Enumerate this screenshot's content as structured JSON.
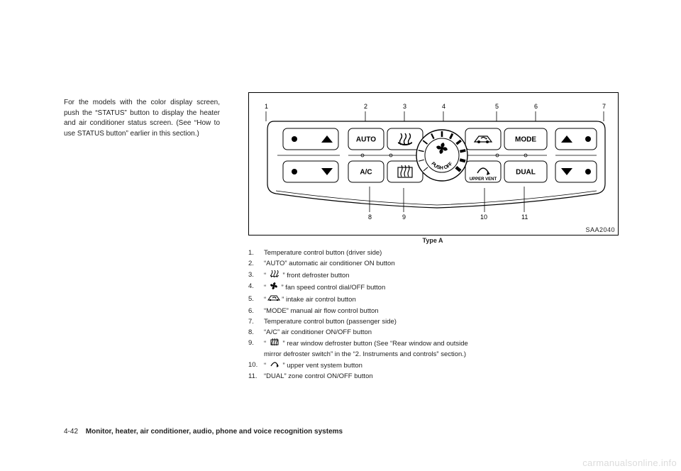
{
  "left_paragraph": "For the models with the color display screen, push the “STATUS” button to display the heater and air conditioner status screen. (See “How to use STATUS button” earlier in this section.)",
  "diagram": {
    "image_code": "SAA2040",
    "caption": "Type A",
    "callouts_top": [
      "1",
      "2",
      "3",
      "4",
      "5",
      "6",
      "7"
    ],
    "callouts_bottom": [
      "8",
      "9",
      "10",
      "11"
    ],
    "buttons": {
      "auto": "AUTO",
      "mode": "MODE",
      "ac": "A/C",
      "dual": "DUAL",
      "upper_vent": "UPPER VENT",
      "push_off": "PUSH OFF"
    }
  },
  "legend": [
    {
      "n": "1.",
      "text_before": "Temperature control button (driver side)",
      "icon": null,
      "text_after": ""
    },
    {
      "n": "2.",
      "text_before": "“AUTO” automatic air conditioner ON button",
      "icon": null,
      "text_after": ""
    },
    {
      "n": "3.",
      "text_before": "“ ",
      "icon": "front-defrost",
      "text_after": " ” front defroster button"
    },
    {
      "n": "4.",
      "text_before": "“ ",
      "icon": "fan",
      "text_after": " ” fan speed control dial/OFF button"
    },
    {
      "n": "5.",
      "text_before": "“",
      "icon": "recirc",
      "text_after": "” intake air control button"
    },
    {
      "n": "6.",
      "text_before": "“MODE” manual air flow control button",
      "icon": null,
      "text_after": ""
    },
    {
      "n": "7.",
      "text_before": "Temperature control button (passenger side)",
      "icon": null,
      "text_after": ""
    },
    {
      "n": "8.",
      "text_before": "“A/C” air conditioner ON/OFF button",
      "icon": null,
      "text_after": ""
    },
    {
      "n": "9.",
      "text_before": "“ ",
      "icon": "rear-defrost",
      "text_after": " ” rear window defroster button (See “Rear window and outside mirror defroster switch” in the “2. Instruments and controls” section.)"
    },
    {
      "n": "10.",
      "text_before": "“ ",
      "icon": "upper-vent",
      "text_after": " ” upper vent system button"
    },
    {
      "n": "11.",
      "text_before": "“DUAL” zone control ON/OFF button",
      "icon": null,
      "text_after": ""
    }
  ],
  "footer": {
    "page_num": "4-42",
    "title": "Monitor, heater, air conditioner, audio, phone and voice recognition systems"
  },
  "watermark": "carmanualsonline.info"
}
